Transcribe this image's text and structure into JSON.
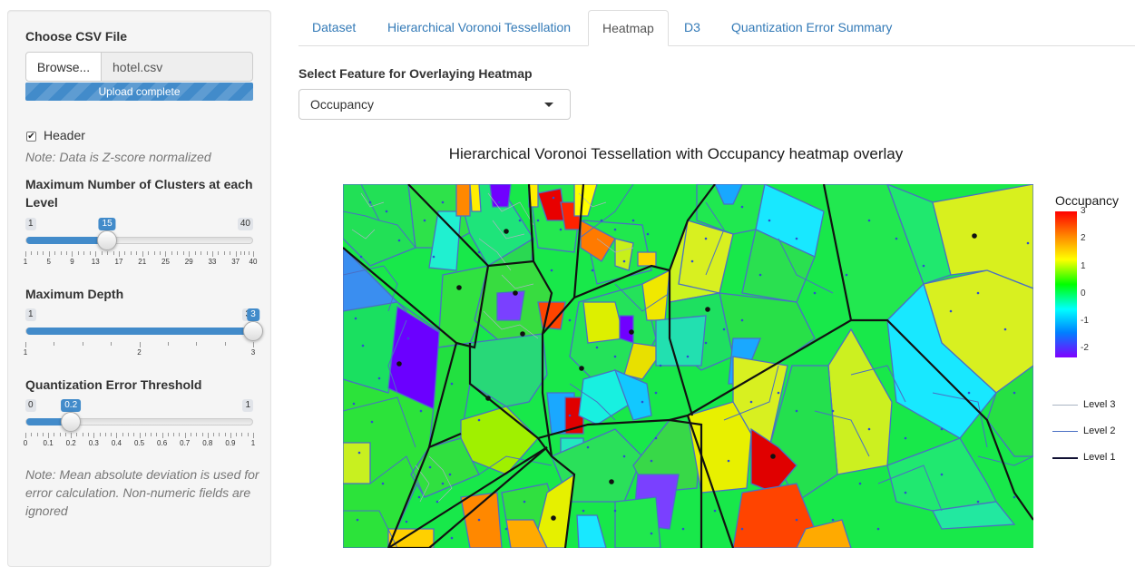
{
  "sidebar": {
    "file_label": "Choose CSV File",
    "browse_label": "Browse...",
    "file_name": "hotel.csv",
    "upload_status": "Upload complete",
    "header_checked": true,
    "header_label": "Header",
    "note_normalized": "Note: Data is Z-score normalized",
    "max_clusters": {
      "label": "Maximum Number of Clusters at each Level",
      "min": 1,
      "max": 40,
      "value": 15,
      "min_label": "1",
      "max_label": "40",
      "value_label": "15",
      "ticks": [
        "1",
        "5",
        "9",
        "13",
        "17",
        "21",
        "25",
        "29",
        "33",
        "37",
        "40"
      ]
    },
    "max_depth": {
      "label": "Maximum Depth",
      "min": 1,
      "max": 3,
      "value": 3,
      "min_label": "1",
      "max_label": "3",
      "value_label": "3",
      "ticks": [
        "1",
        "2",
        "3"
      ]
    },
    "quant_threshold": {
      "label": "Quantization Error Threshold",
      "min": 0,
      "max": 1,
      "value": 0.2,
      "min_label": "0",
      "max_label": "1",
      "value_label": "0.2",
      "ticks": [
        "0",
        "0.1",
        "0.2",
        "0.3",
        "0.4",
        "0.5",
        "0.6",
        "0.7",
        "0.8",
        "0.9",
        "1"
      ]
    },
    "note_error": "Note: Mean absolute deviation is used for error calculation. Non-numeric fields are ignored"
  },
  "tabs": [
    {
      "label": "Dataset",
      "active": false
    },
    {
      "label": "Hierarchical Voronoi Tessellation",
      "active": false
    },
    {
      "label": "Heatmap",
      "active": true
    },
    {
      "label": "D3",
      "active": false
    },
    {
      "label": "Quantization Error Summary",
      "active": false
    }
  ],
  "feature_select": {
    "label": "Select Feature for Overlaying Heatmap",
    "value": "Occupancy"
  },
  "plot": {
    "title": "Hierarchical Voronoi Tessellation with Occupancy heatmap overlay",
    "legend_title": "Occupancy",
    "color_ticks": [
      "3",
      "2",
      "1",
      "0",
      "-1",
      "-2"
    ],
    "levels": [
      {
        "label": "Level 3",
        "color": "#aab4c3"
      },
      {
        "label": "Level 2",
        "color": "#4a6fc4"
      },
      {
        "label": "Level 1",
        "color": "#111133"
      }
    ]
  }
}
